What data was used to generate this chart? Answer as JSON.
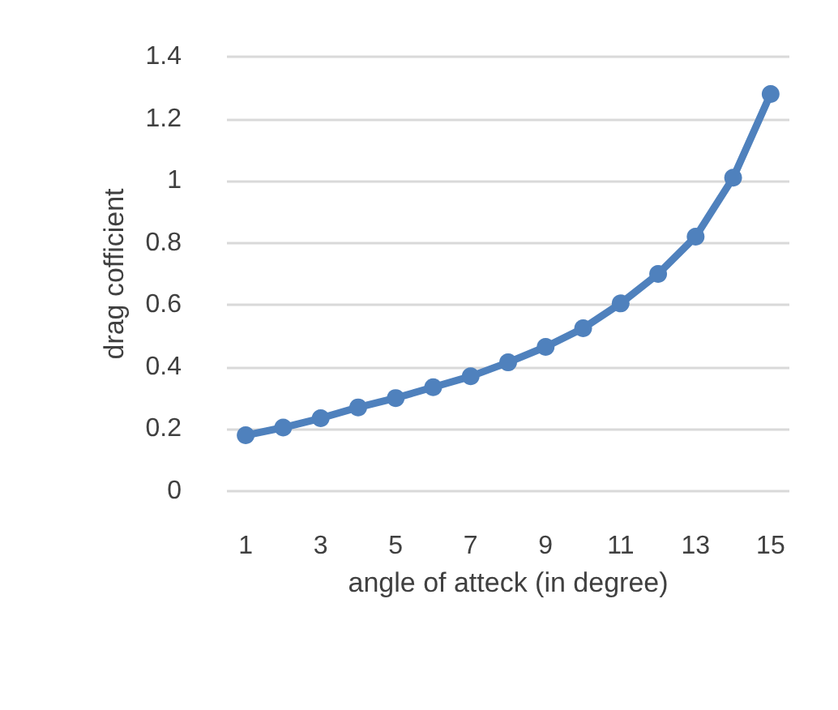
{
  "chart_data": {
    "type": "line",
    "xlabel": "angle of atteck (in degree)",
    "ylabel": "drag cofficient",
    "x": [
      1,
      2,
      3,
      4,
      5,
      6,
      7,
      8,
      9,
      10,
      11,
      12,
      13,
      14,
      15
    ],
    "series": [
      {
        "color": "#4f81bd",
        "values": [
          0.18,
          0.205,
          0.235,
          0.27,
          0.3,
          0.335,
          0.37,
          0.415,
          0.465,
          0.525,
          0.605,
          0.7,
          0.82,
          1.01,
          1.28
        ]
      }
    ],
    "xlim": [
      0.5,
      15.5
    ],
    "xticks": [
      1,
      3,
      5,
      7,
      9,
      11,
      13,
      15
    ],
    "ylim": [
      0,
      1.4
    ],
    "yticks": [
      0,
      0.2,
      0.4,
      0.6,
      0.8,
      1,
      1.2,
      1.4
    ],
    "grid": "y",
    "marker": "circle",
    "line_style": "solid"
  }
}
